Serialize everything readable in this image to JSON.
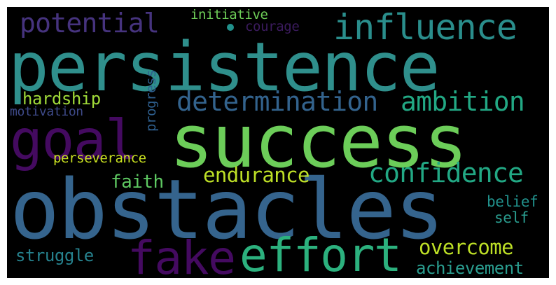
{
  "words": [
    {
      "text": "persistence",
      "color": "#2f8f8c"
    },
    {
      "text": "success",
      "color": "#6ccd59"
    },
    {
      "text": "obstacles",
      "color": "#35648d"
    },
    {
      "text": "goal",
      "color": "#440a60"
    },
    {
      "text": "influence",
      "color": "#2a8e8c"
    },
    {
      "text": "potential",
      "color": "#46337e"
    },
    {
      "text": "initiative",
      "color": "#6ece58"
    },
    {
      "text": "courage",
      "color": "#3b1b5e"
    },
    {
      "text": "determination",
      "color": "#33638d"
    },
    {
      "text": "ambition",
      "color": "#22a884"
    },
    {
      "text": "hardship",
      "color": "#a0da39"
    },
    {
      "text": "progress",
      "color": "#2e5f8e"
    },
    {
      "text": "motivation",
      "color": "#3e4a89"
    },
    {
      "text": "confidence",
      "color": "#22a884"
    },
    {
      "text": "endurance",
      "color": "#bddf26"
    },
    {
      "text": "perseverance",
      "color": "#c8e020"
    },
    {
      "text": "faith",
      "color": "#5ec962"
    },
    {
      "text": "effort",
      "color": "#2cb17e"
    },
    {
      "text": "fake",
      "color": "#440a60"
    },
    {
      "text": "overcome",
      "color": "#bddf26"
    },
    {
      "text": "achievement",
      "color": "#2a9d8f"
    },
    {
      "text": "struggle",
      "color": "#26828e"
    },
    {
      "text": "belief",
      "color": "#21918c"
    },
    {
      "text": "self",
      "color": "#2a9d8f"
    }
  ]
}
